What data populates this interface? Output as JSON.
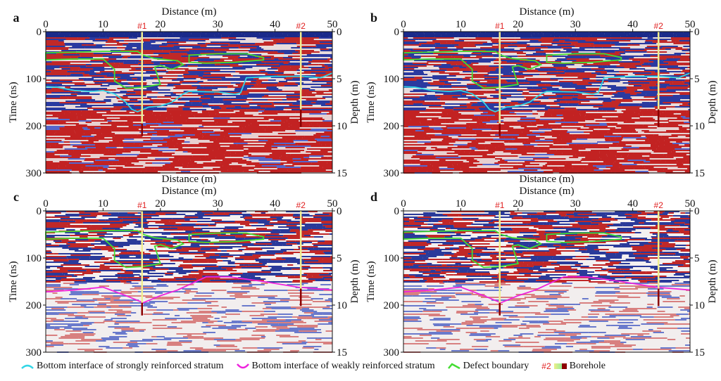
{
  "chart_data": [
    {
      "panel": "a",
      "type": "heatmap",
      "xlabel": "Distance (m)",
      "ylabel": "Time (ns)",
      "y2label": "Depth (m)",
      "xlim": [
        0,
        50
      ],
      "ylim": [
        0,
        300
      ],
      "y2lim": [
        0,
        15
      ],
      "xticks": [
        "0",
        "10",
        "20",
        "30",
        "40",
        "50"
      ],
      "yticks": [
        "0",
        "100",
        "200",
        "300"
      ],
      "y2ticks": [
        "0",
        "5",
        "10",
        "15"
      ],
      "show_bottom_xlabel": true,
      "colors": "red-white-blue",
      "lines": [
        "strong"
      ]
    },
    {
      "panel": "b",
      "type": "heatmap",
      "xlabel": "Distance (m)",
      "ylabel": "Time (ns)",
      "y2label": "Depth (m)",
      "xlim": [
        0,
        50
      ],
      "ylim": [
        0,
        300
      ],
      "y2lim": [
        0,
        15
      ],
      "xticks": [
        "0",
        "10",
        "20",
        "30",
        "40",
        "50"
      ],
      "yticks": [
        "0",
        "100",
        "200",
        "300"
      ],
      "y2ticks": [
        "0",
        "5",
        "10",
        "15"
      ],
      "show_bottom_xlabel": true,
      "colors": "red-white-blue",
      "lines": [
        "strong"
      ]
    },
    {
      "panel": "c",
      "type": "heatmap",
      "xlabel": "Distance (m)",
      "ylabel": "Time (ns)",
      "y2label": "Depth (m)",
      "xlim": [
        0,
        50
      ],
      "ylim": [
        0,
        300
      ],
      "y2lim": [
        0,
        15
      ],
      "xticks": [
        "0",
        "10",
        "20",
        "30",
        "40",
        "50"
      ],
      "yticks": [
        "0",
        "100",
        "200",
        "300"
      ],
      "y2ticks": [
        "0",
        "5",
        "10",
        "15"
      ],
      "show_bottom_xlabel": false,
      "colors": "pale",
      "lines": [
        "weak"
      ]
    },
    {
      "panel": "d",
      "type": "heatmap",
      "xlabel": "Distance (m)",
      "ylabel": "Time (ns)",
      "y2label": "Depth (m)",
      "xlim": [
        0,
        50
      ],
      "ylim": [
        0,
        300
      ],
      "y2lim": [
        0,
        15
      ],
      "xticks": [
        "0",
        "10",
        "20",
        "30",
        "40",
        "50"
      ],
      "yticks": [
        "0",
        "100",
        "200",
        "300"
      ],
      "y2ticks": [
        "0",
        "5",
        "10",
        "15"
      ],
      "show_bottom_xlabel": false,
      "colors": "pale",
      "lines": [
        "weak"
      ]
    }
  ],
  "overlays": {
    "strong": {
      "color": "#33d6e6",
      "points": [
        [
          0,
          117
        ],
        [
          2,
          118
        ],
        [
          5,
          125
        ],
        [
          8,
          127
        ],
        [
          10,
          125
        ],
        [
          12,
          132
        ],
        [
          14,
          150
        ],
        [
          15,
          165
        ],
        [
          16,
          170
        ],
        [
          18,
          160
        ],
        [
          20,
          158
        ],
        [
          22,
          150
        ],
        [
          24,
          132
        ],
        [
          25,
          127
        ],
        [
          30,
          128
        ],
        [
          33,
          133
        ],
        [
          34,
          130
        ],
        [
          35,
          98
        ],
        [
          40,
          95
        ],
        [
          45,
          95
        ],
        [
          48,
          98
        ],
        [
          50,
          88
        ]
      ]
    },
    "weak": {
      "color": "#ee22dd",
      "points": [
        [
          0,
          172
        ],
        [
          5,
          168
        ],
        [
          10,
          162
        ],
        [
          14,
          180
        ],
        [
          17,
          195
        ],
        [
          20,
          180
        ],
        [
          23,
          168
        ],
        [
          28,
          140
        ],
        [
          32,
          140
        ],
        [
          38,
          150
        ],
        [
          44,
          162
        ],
        [
          50,
          168
        ]
      ]
    },
    "defects": {
      "color": "#44dd33",
      "polygons": [
        [
          [
            0,
            45
          ],
          [
            10,
            42
          ],
          [
            16,
            42
          ],
          [
            17,
            50
          ],
          [
            19,
            57
          ],
          [
            23,
            62
          ],
          [
            24,
            70
          ],
          [
            22,
            80
          ],
          [
            20,
            72
          ],
          [
            19,
            75
          ],
          [
            20,
            112
          ],
          [
            17,
            118
          ],
          [
            14,
            120
          ],
          [
            12,
            105
          ],
          [
            12,
            80
          ],
          [
            10,
            58
          ],
          [
            5,
            58
          ],
          [
            0,
            60
          ]
        ],
        [
          [
            25,
            50
          ],
          [
            30,
            47
          ],
          [
            35,
            47
          ],
          [
            38,
            55
          ],
          [
            38,
            60
          ],
          [
            33,
            65
          ],
          [
            28,
            67
          ],
          [
            25,
            65
          ]
        ]
      ]
    },
    "boreholes": [
      {
        "label": "#1",
        "x": 16.8,
        "top": 0,
        "light_end": 195,
        "bottom": 222
      },
      {
        "label": "#2",
        "x": 44.5,
        "top": 0,
        "light_end": 165,
        "bottom": 202
      }
    ]
  },
  "legend": {
    "strong": "Bottom interface of strongly reinforced stratum",
    "weak": "Bottom interface of weakly reinforced stratum",
    "defect": "Defect boundary",
    "borehole_tag": "#2",
    "borehole": "Borehole"
  }
}
